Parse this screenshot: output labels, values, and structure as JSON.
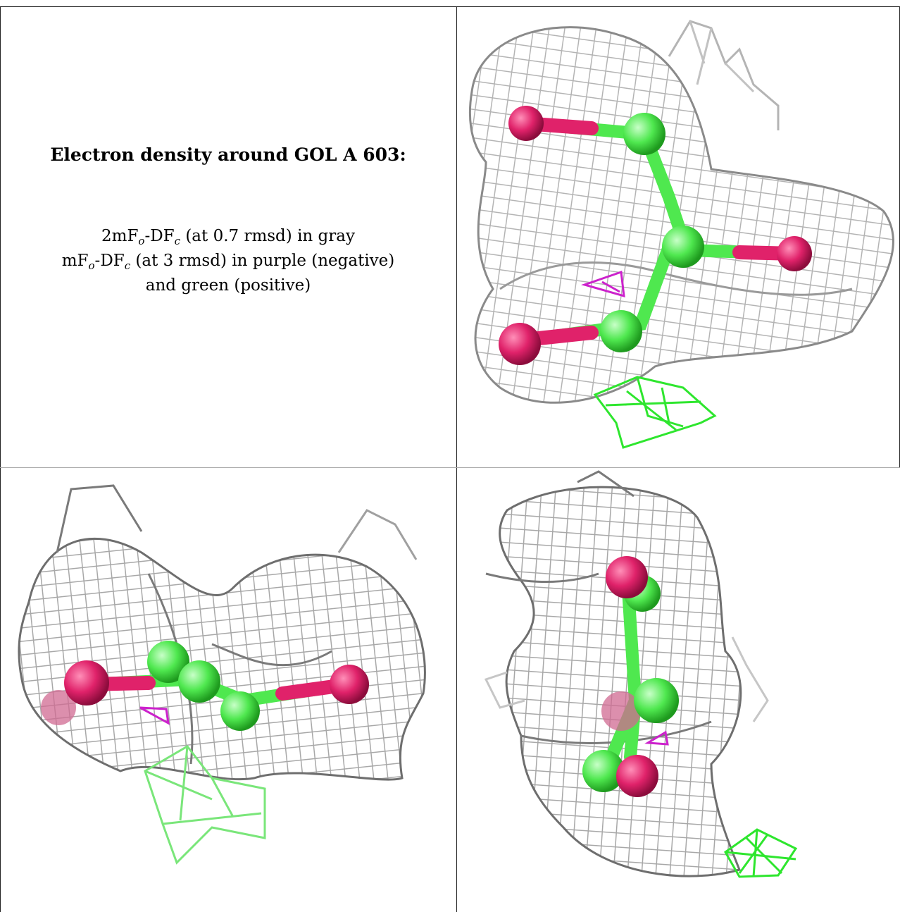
{
  "caption": {
    "title": "Electron density around GOL A 603:",
    "line1": {
      "a": "2mF",
      "b": "o",
      "c": "-DF",
      "d": "c",
      "e": " (at 0.7 rmsd) in gray"
    },
    "line2": {
      "a": "mF",
      "b": "o",
      "c": "-DF",
      "d": "c",
      "e": " (at 3 rmsd) in purple (negative)"
    },
    "line3": "and green (positive)"
  },
  "colors": {
    "mesh_gray": "#b4b4b4",
    "mesh_dark": "#6e6e6e",
    "oxygen": "#e0226a",
    "carbon": "#4fe84f",
    "positive_mesh": "#2ee62e",
    "negative_mesh": "#cc22cc"
  },
  "panels": [
    "view-top-right",
    "view-bottom-left",
    "view-bottom-right"
  ]
}
